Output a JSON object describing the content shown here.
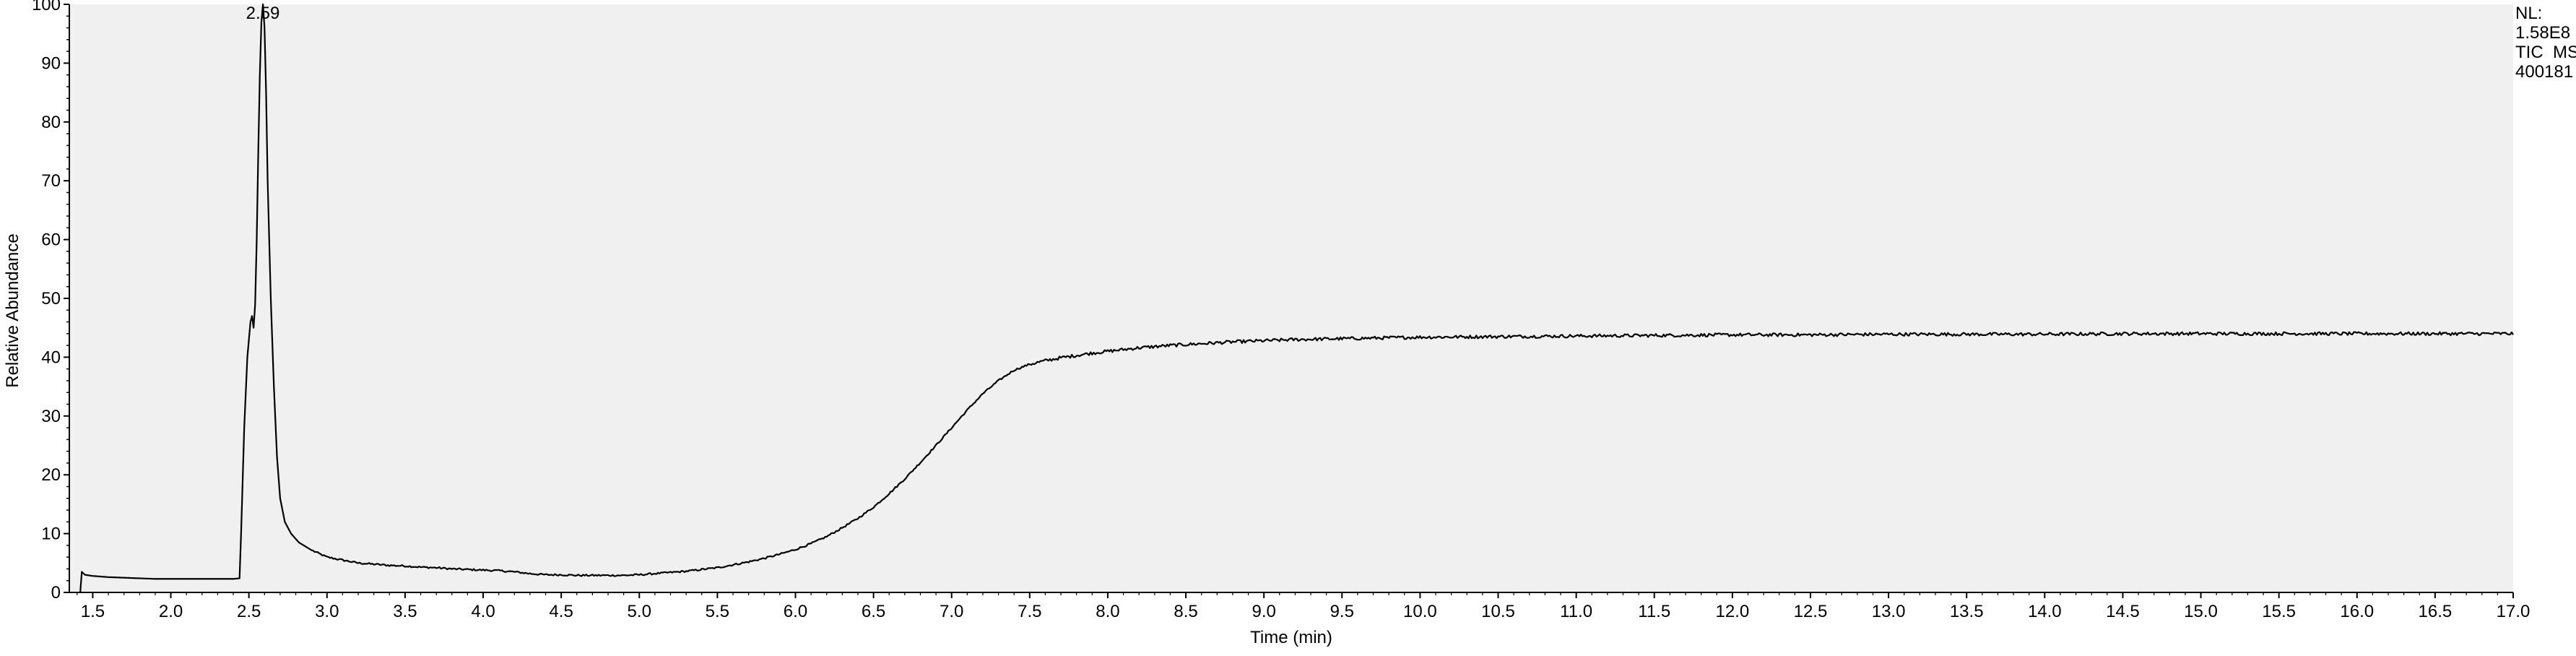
{
  "chart_data": {
    "type": "line",
    "title": "",
    "xlabel": "Time (min)",
    "ylabel": "Relative Abundance",
    "xlim": [
      1.35,
      17.0
    ],
    "ylim": [
      0,
      100
    ],
    "x_ticks": [
      "1.5",
      "2.0",
      "2.5",
      "3.0",
      "3.5",
      "4.0",
      "4.5",
      "5.0",
      "5.5",
      "6.0",
      "6.5",
      "7.0",
      "7.5",
      "8.0",
      "8.5",
      "9.0",
      "9.5",
      "10.0",
      "10.5",
      "11.0",
      "11.5",
      "12.0",
      "12.5",
      "13.0",
      "13.5",
      "14.0",
      "14.5",
      "15.0",
      "15.5",
      "16.0",
      "16.5",
      "17.0"
    ],
    "y_ticks": [
      "0",
      "10",
      "20",
      "30",
      "40",
      "50",
      "60",
      "70",
      "80",
      "90",
      "100"
    ],
    "grid": false,
    "background": "#f0f0f0",
    "line_color": "#000000",
    "peak_label": {
      "text": "2.59",
      "x": 2.59,
      "y": 100
    },
    "info_labels": [
      "NL:",
      "1.58E8",
      "TIC  MS",
      "400181"
    ],
    "series": [
      {
        "points": [
          [
            1.42,
            0
          ],
          [
            1.43,
            3.5
          ],
          [
            1.45,
            3.0
          ],
          [
            1.5,
            2.8
          ],
          [
            1.6,
            2.6
          ],
          [
            1.7,
            2.5
          ],
          [
            1.8,
            2.4
          ],
          [
            1.9,
            2.3
          ],
          [
            2.0,
            2.3
          ],
          [
            2.1,
            2.3
          ],
          [
            2.2,
            2.3
          ],
          [
            2.3,
            2.3
          ],
          [
            2.4,
            2.3
          ],
          [
            2.44,
            2.4
          ],
          [
            2.45,
            10
          ],
          [
            2.47,
            28
          ],
          [
            2.49,
            40
          ],
          [
            2.51,
            46
          ],
          [
            2.52,
            47
          ],
          [
            2.53,
            45
          ],
          [
            2.54,
            49
          ],
          [
            2.55,
            60
          ],
          [
            2.56,
            75
          ],
          [
            2.57,
            88
          ],
          [
            2.58,
            97
          ],
          [
            2.59,
            100
          ],
          [
            2.6,
            96
          ],
          [
            2.61,
            85
          ],
          [
            2.62,
            70
          ],
          [
            2.64,
            50
          ],
          [
            2.66,
            35
          ],
          [
            2.68,
            23
          ],
          [
            2.7,
            16
          ],
          [
            2.73,
            12
          ],
          [
            2.77,
            10
          ],
          [
            2.82,
            8.5
          ],
          [
            2.9,
            7.2
          ],
          [
            3.0,
            6.0
          ],
          [
            3.1,
            5.5
          ],
          [
            3.2,
            5.0
          ],
          [
            3.3,
            4.8
          ],
          [
            3.4,
            4.6
          ],
          [
            3.5,
            4.5
          ],
          [
            3.6,
            4.3
          ],
          [
            3.7,
            4.2
          ],
          [
            3.8,
            4.0
          ],
          [
            3.9,
            3.9
          ],
          [
            4.0,
            3.8
          ],
          [
            4.1,
            3.7
          ],
          [
            4.2,
            3.5
          ],
          [
            4.3,
            3.2
          ],
          [
            4.4,
            3.0
          ],
          [
            4.5,
            3.0
          ],
          [
            4.6,
            2.9
          ],
          [
            4.7,
            2.9
          ],
          [
            4.8,
            2.9
          ],
          [
            4.9,
            2.9
          ],
          [
            5.0,
            3.0
          ],
          [
            5.1,
            3.2
          ],
          [
            5.2,
            3.4
          ],
          [
            5.3,
            3.6
          ],
          [
            5.4,
            3.9
          ],
          [
            5.5,
            4.2
          ],
          [
            5.6,
            4.7
          ],
          [
            5.7,
            5.2
          ],
          [
            5.8,
            5.8
          ],
          [
            5.9,
            6.5
          ],
          [
            6.0,
            7.3
          ],
          [
            6.1,
            8.3
          ],
          [
            6.2,
            9.5
          ],
          [
            6.3,
            11.0
          ],
          [
            6.4,
            12.6
          ],
          [
            6.5,
            14.5
          ],
          [
            6.6,
            16.8
          ],
          [
            6.7,
            19.3
          ],
          [
            6.8,
            22.1
          ],
          [
            6.9,
            25.0
          ],
          [
            7.0,
            28.0
          ],
          [
            7.1,
            31.0
          ],
          [
            7.2,
            33.8
          ],
          [
            7.3,
            36.0
          ],
          [
            7.4,
            37.8
          ],
          [
            7.5,
            38.8
          ],
          [
            7.6,
            39.4
          ],
          [
            7.7,
            39.9
          ],
          [
            7.8,
            40.3
          ],
          [
            7.9,
            40.7
          ],
          [
            8.0,
            41.0
          ],
          [
            8.2,
            41.6
          ],
          [
            8.4,
            42.0
          ],
          [
            8.6,
            42.3
          ],
          [
            8.8,
            42.6
          ],
          [
            9.0,
            42.8
          ],
          [
            9.2,
            43.0
          ],
          [
            9.4,
            43.1
          ],
          [
            9.6,
            43.2
          ],
          [
            9.8,
            43.3
          ],
          [
            10.0,
            43.4
          ],
          [
            10.5,
            43.5
          ],
          [
            11.0,
            43.6
          ],
          [
            11.5,
            43.7
          ],
          [
            12.0,
            43.8
          ],
          [
            12.5,
            43.8
          ],
          [
            13.0,
            43.9
          ],
          [
            13.5,
            43.9
          ],
          [
            14.0,
            43.9
          ],
          [
            14.5,
            44.0
          ],
          [
            15.0,
            44.0
          ],
          [
            15.5,
            44.0
          ],
          [
            16.0,
            44.0
          ],
          [
            16.5,
            44.0
          ],
          [
            17.0,
            44.0
          ]
        ]
      }
    ]
  }
}
